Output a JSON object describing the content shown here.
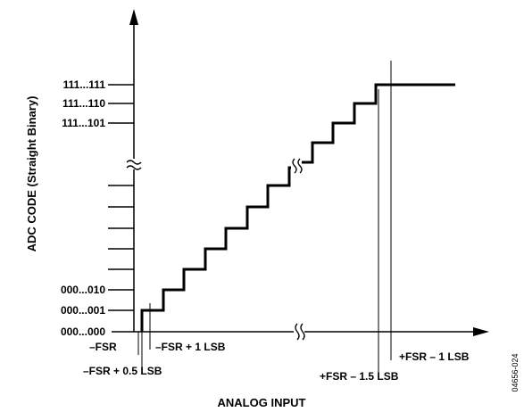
{
  "diagram": {
    "y_axis_title": "ADC CODE (Straight Binary)",
    "x_axis_title": "ANALOG INPUT",
    "y_code_labels": [
      "111...111",
      "111...110",
      "111...101",
      "000...010",
      "000...001",
      "000...000"
    ],
    "x_labels": {
      "neg_fsr": "–FSR",
      "neg_fsr_plus_1lsb": "–FSR + 1 LSB",
      "neg_fsr_plus_half_lsb": "–FSR + 0.5 LSB",
      "pos_fsr_minus_1_5lsb": "+FSR – 1.5 LSB",
      "pos_fsr_minus_1lsb": "+FSR – 1 LSB"
    },
    "figure_id": "04656-024",
    "line_color": "#000000"
  }
}
